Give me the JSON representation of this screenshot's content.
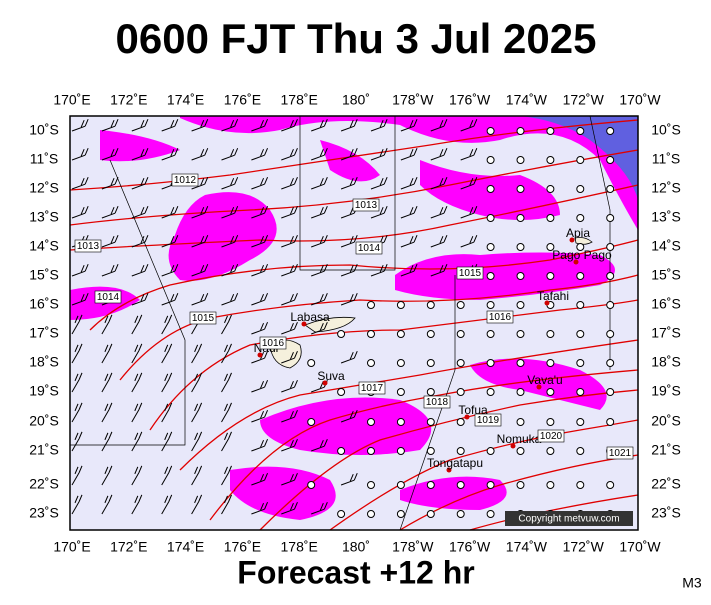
{
  "title": "0600 FJT Thu 3 Jul 2025",
  "longitudes": [
    "170˚E",
    "172˚E",
    "174˚E",
    "176˚E",
    "178˚E",
    "180˚",
    "178˚W",
    "176˚W",
    "174˚W",
    "172˚W",
    "170˚W"
  ],
  "latitudes": [
    "10˚S",
    "11˚S",
    "12˚S",
    "13˚S",
    "14˚S",
    "15˚S",
    "16˚S",
    "17˚S",
    "18˚S",
    "19˚S",
    "20˚S",
    "21˚S",
    "22˚S",
    "23˚S"
  ],
  "places": [
    "Apia",
    "Pago Pago",
    "Tafahi",
    "Labasa",
    "Nadi",
    "Suva",
    "Vava'u",
    "Tofua",
    "Nomuka",
    "Tongatapu"
  ],
  "isobar_labels": [
    "1012",
    "1013",
    "1013",
    "1014",
    "1014",
    "1015",
    "1015",
    "1016",
    "1016",
    "1017",
    "1018",
    "1019",
    "1020",
    "1021"
  ],
  "copyright": "Copyright metvuw.com",
  "forecast": "Forecast +12 hr",
  "model": "M3"
}
